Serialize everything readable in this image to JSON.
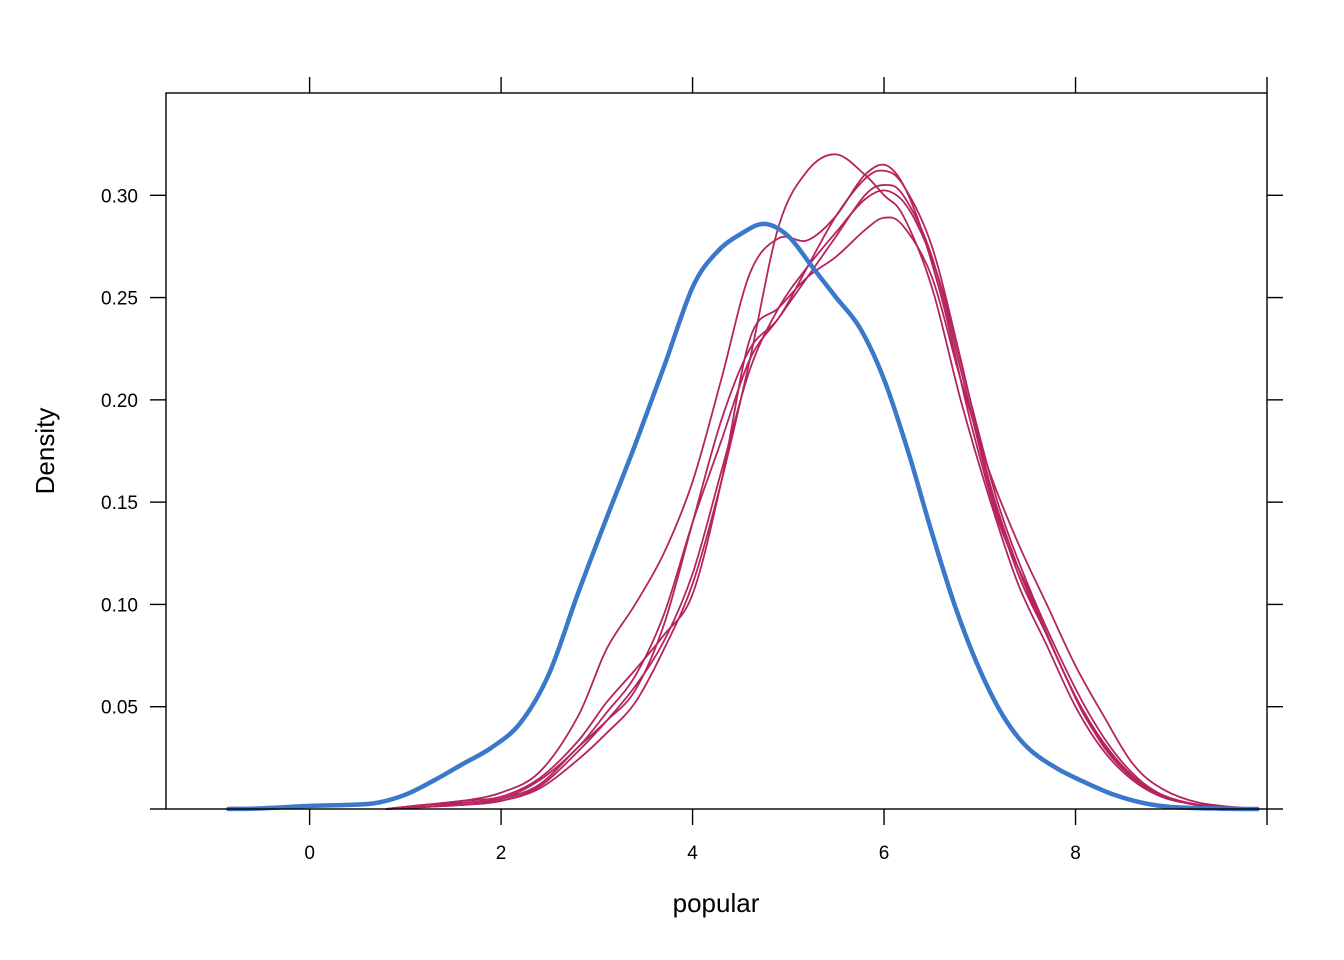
{
  "chart_data": {
    "type": "line",
    "title": "",
    "xlabel": "popular",
    "ylabel": "Density",
    "xlim": [
      -1.5,
      10.0
    ],
    "ylim": [
      0,
      0.35
    ],
    "grid": false,
    "x_ticks": [
      0,
      2,
      4,
      6,
      8
    ],
    "x_tick_labels": [
      "0",
      "2",
      "4",
      "6",
      "8"
    ],
    "y_ticks": [
      0.05,
      0.1,
      0.15,
      0.2,
      0.25,
      0.3
    ],
    "y_tick_labels": [
      "0.05",
      "0.10",
      "0.15",
      "0.20",
      "0.25",
      "0.30"
    ],
    "colors": {
      "observed": "#3a78c9",
      "imputed": "#b5245d"
    },
    "series": [
      {
        "role": "observed",
        "points": [
          [
            -0.85,
            0.0
          ],
          [
            -0.5,
            0.0003
          ],
          [
            0.0,
            0.0015
          ],
          [
            0.4,
            0.002
          ],
          [
            0.7,
            0.003
          ],
          [
            1.0,
            0.007
          ],
          [
            1.3,
            0.014
          ],
          [
            1.6,
            0.022
          ],
          [
            1.9,
            0.03
          ],
          [
            2.2,
            0.042
          ],
          [
            2.5,
            0.066
          ],
          [
            2.8,
            0.105
          ],
          [
            3.1,
            0.142
          ],
          [
            3.4,
            0.178
          ],
          [
            3.7,
            0.216
          ],
          [
            4.0,
            0.255
          ],
          [
            4.25,
            0.272
          ],
          [
            4.5,
            0.281
          ],
          [
            4.75,
            0.286
          ],
          [
            5.0,
            0.28
          ],
          [
            5.25,
            0.265
          ],
          [
            5.5,
            0.25
          ],
          [
            5.75,
            0.235
          ],
          [
            6.0,
            0.21
          ],
          [
            6.25,
            0.175
          ],
          [
            6.5,
            0.135
          ],
          [
            6.75,
            0.098
          ],
          [
            7.0,
            0.068
          ],
          [
            7.25,
            0.045
          ],
          [
            7.5,
            0.03
          ],
          [
            7.8,
            0.02
          ],
          [
            8.1,
            0.013
          ],
          [
            8.4,
            0.007
          ],
          [
            8.7,
            0.003
          ],
          [
            9.0,
            0.001
          ],
          [
            9.5,
            0.0002
          ],
          [
            9.9,
            0.0
          ]
        ]
      },
      {
        "role": "imputed",
        "points": [
          [
            0.8,
            0.0
          ],
          [
            1.2,
            0.002
          ],
          [
            1.6,
            0.004
          ],
          [
            2.0,
            0.008
          ],
          [
            2.4,
            0.018
          ],
          [
            2.8,
            0.045
          ],
          [
            3.1,
            0.078
          ],
          [
            3.4,
            0.1
          ],
          [
            3.7,
            0.125
          ],
          [
            4.0,
            0.16
          ],
          [
            4.3,
            0.21
          ],
          [
            4.6,
            0.262
          ],
          [
            4.9,
            0.279
          ],
          [
            5.2,
            0.278
          ],
          [
            5.5,
            0.29
          ],
          [
            5.8,
            0.31
          ],
          [
            6.05,
            0.314
          ],
          [
            6.3,
            0.295
          ],
          [
            6.6,
            0.25
          ],
          [
            6.9,
            0.19
          ],
          [
            7.2,
            0.14
          ],
          [
            7.5,
            0.108
          ],
          [
            7.8,
            0.075
          ],
          [
            8.1,
            0.045
          ],
          [
            8.4,
            0.025
          ],
          [
            8.7,
            0.012
          ],
          [
            9.0,
            0.005
          ],
          [
            9.4,
            0.001
          ],
          [
            9.9,
            0.0
          ]
        ]
      },
      {
        "role": "imputed",
        "points": [
          [
            0.8,
            0.0
          ],
          [
            1.2,
            0.002
          ],
          [
            1.6,
            0.004
          ],
          [
            2.0,
            0.006
          ],
          [
            2.4,
            0.015
          ],
          [
            2.8,
            0.033
          ],
          [
            3.1,
            0.052
          ],
          [
            3.4,
            0.068
          ],
          [
            3.7,
            0.085
          ],
          [
            4.0,
            0.105
          ],
          [
            4.3,
            0.16
          ],
          [
            4.6,
            0.23
          ],
          [
            4.9,
            0.245
          ],
          [
            5.2,
            0.26
          ],
          [
            5.5,
            0.27
          ],
          [
            5.8,
            0.283
          ],
          [
            6.0,
            0.289
          ],
          [
            6.2,
            0.285
          ],
          [
            6.5,
            0.26
          ],
          [
            6.8,
            0.21
          ],
          [
            7.1,
            0.165
          ],
          [
            7.4,
            0.13
          ],
          [
            7.7,
            0.1
          ],
          [
            8.0,
            0.07
          ],
          [
            8.3,
            0.045
          ],
          [
            8.6,
            0.022
          ],
          [
            8.9,
            0.01
          ],
          [
            9.3,
            0.003
          ],
          [
            9.9,
            0.0
          ]
        ]
      },
      {
        "role": "imputed",
        "points": [
          [
            0.8,
            0.0
          ],
          [
            1.2,
            0.002
          ],
          [
            1.6,
            0.003
          ],
          [
            2.0,
            0.005
          ],
          [
            2.4,
            0.014
          ],
          [
            2.8,
            0.03
          ],
          [
            3.1,
            0.047
          ],
          [
            3.4,
            0.065
          ],
          [
            3.7,
            0.095
          ],
          [
            4.0,
            0.14
          ],
          [
            4.3,
            0.18
          ],
          [
            4.6,
            0.22
          ],
          [
            4.9,
            0.24
          ],
          [
            5.2,
            0.26
          ],
          [
            5.5,
            0.28
          ],
          [
            5.8,
            0.3
          ],
          [
            6.0,
            0.305
          ],
          [
            6.2,
            0.3
          ],
          [
            6.5,
            0.27
          ],
          [
            6.8,
            0.215
          ],
          [
            7.1,
            0.158
          ],
          [
            7.4,
            0.115
          ],
          [
            7.7,
            0.085
          ],
          [
            8.0,
            0.055
          ],
          [
            8.3,
            0.032
          ],
          [
            8.6,
            0.016
          ],
          [
            8.9,
            0.007
          ],
          [
            9.3,
            0.002
          ],
          [
            9.9,
            0.0
          ]
        ]
      },
      {
        "role": "imputed",
        "points": [
          [
            0.8,
            0.0
          ],
          [
            1.2,
            0.001
          ],
          [
            1.6,
            0.003
          ],
          [
            2.0,
            0.005
          ],
          [
            2.4,
            0.012
          ],
          [
            2.8,
            0.03
          ],
          [
            3.1,
            0.043
          ],
          [
            3.4,
            0.058
          ],
          [
            3.7,
            0.09
          ],
          [
            4.0,
            0.14
          ],
          [
            4.3,
            0.19
          ],
          [
            4.6,
            0.225
          ],
          [
            4.9,
            0.24
          ],
          [
            5.2,
            0.265
          ],
          [
            5.5,
            0.29
          ],
          [
            5.8,
            0.308
          ],
          [
            6.0,
            0.312
          ],
          [
            6.2,
            0.305
          ],
          [
            6.5,
            0.275
          ],
          [
            6.8,
            0.22
          ],
          [
            7.1,
            0.16
          ],
          [
            7.4,
            0.118
          ],
          [
            7.7,
            0.085
          ],
          [
            8.0,
            0.055
          ],
          [
            8.3,
            0.03
          ],
          [
            8.6,
            0.015
          ],
          [
            8.9,
            0.006
          ],
          [
            9.3,
            0.002
          ],
          [
            9.9,
            0.0
          ]
        ]
      },
      {
        "role": "imputed",
        "points": [
          [
            0.8,
            0.0
          ],
          [
            1.2,
            0.001
          ],
          [
            1.6,
            0.002
          ],
          [
            2.0,
            0.004
          ],
          [
            2.4,
            0.01
          ],
          [
            2.8,
            0.024
          ],
          [
            3.1,
            0.037
          ],
          [
            3.4,
            0.052
          ],
          [
            3.7,
            0.078
          ],
          [
            4.0,
            0.11
          ],
          [
            4.3,
            0.16
          ],
          [
            4.6,
            0.22
          ],
          [
            4.9,
            0.285
          ],
          [
            5.2,
            0.312
          ],
          [
            5.5,
            0.32
          ],
          [
            5.8,
            0.31
          ],
          [
            6.0,
            0.3
          ],
          [
            6.2,
            0.29
          ],
          [
            6.5,
            0.255
          ],
          [
            6.8,
            0.2
          ],
          [
            7.1,
            0.152
          ],
          [
            7.4,
            0.11
          ],
          [
            7.7,
            0.08
          ],
          [
            8.0,
            0.05
          ],
          [
            8.3,
            0.028
          ],
          [
            8.6,
            0.014
          ],
          [
            8.9,
            0.006
          ],
          [
            9.3,
            0.002
          ],
          [
            9.9,
            0.0
          ]
        ]
      },
      {
        "role": "imputed",
        "points": [
          [
            0.8,
            0.0
          ],
          [
            1.2,
            0.001
          ],
          [
            1.6,
            0.002
          ],
          [
            2.0,
            0.004
          ],
          [
            2.4,
            0.011
          ],
          [
            2.8,
            0.028
          ],
          [
            3.1,
            0.043
          ],
          [
            3.4,
            0.06
          ],
          [
            3.7,
            0.082
          ],
          [
            4.0,
            0.115
          ],
          [
            4.3,
            0.165
          ],
          [
            4.6,
            0.215
          ],
          [
            4.9,
            0.245
          ],
          [
            5.2,
            0.265
          ],
          [
            5.5,
            0.282
          ],
          [
            5.8,
            0.298
          ],
          [
            6.05,
            0.302
          ],
          [
            6.3,
            0.29
          ],
          [
            6.6,
            0.255
          ],
          [
            6.9,
            0.2
          ],
          [
            7.2,
            0.148
          ],
          [
            7.5,
            0.11
          ],
          [
            7.8,
            0.078
          ],
          [
            8.1,
            0.05
          ],
          [
            8.4,
            0.028
          ],
          [
            8.7,
            0.013
          ],
          [
            9.0,
            0.005
          ],
          [
            9.4,
            0.001
          ],
          [
            9.9,
            0.0
          ]
        ]
      }
    ]
  }
}
